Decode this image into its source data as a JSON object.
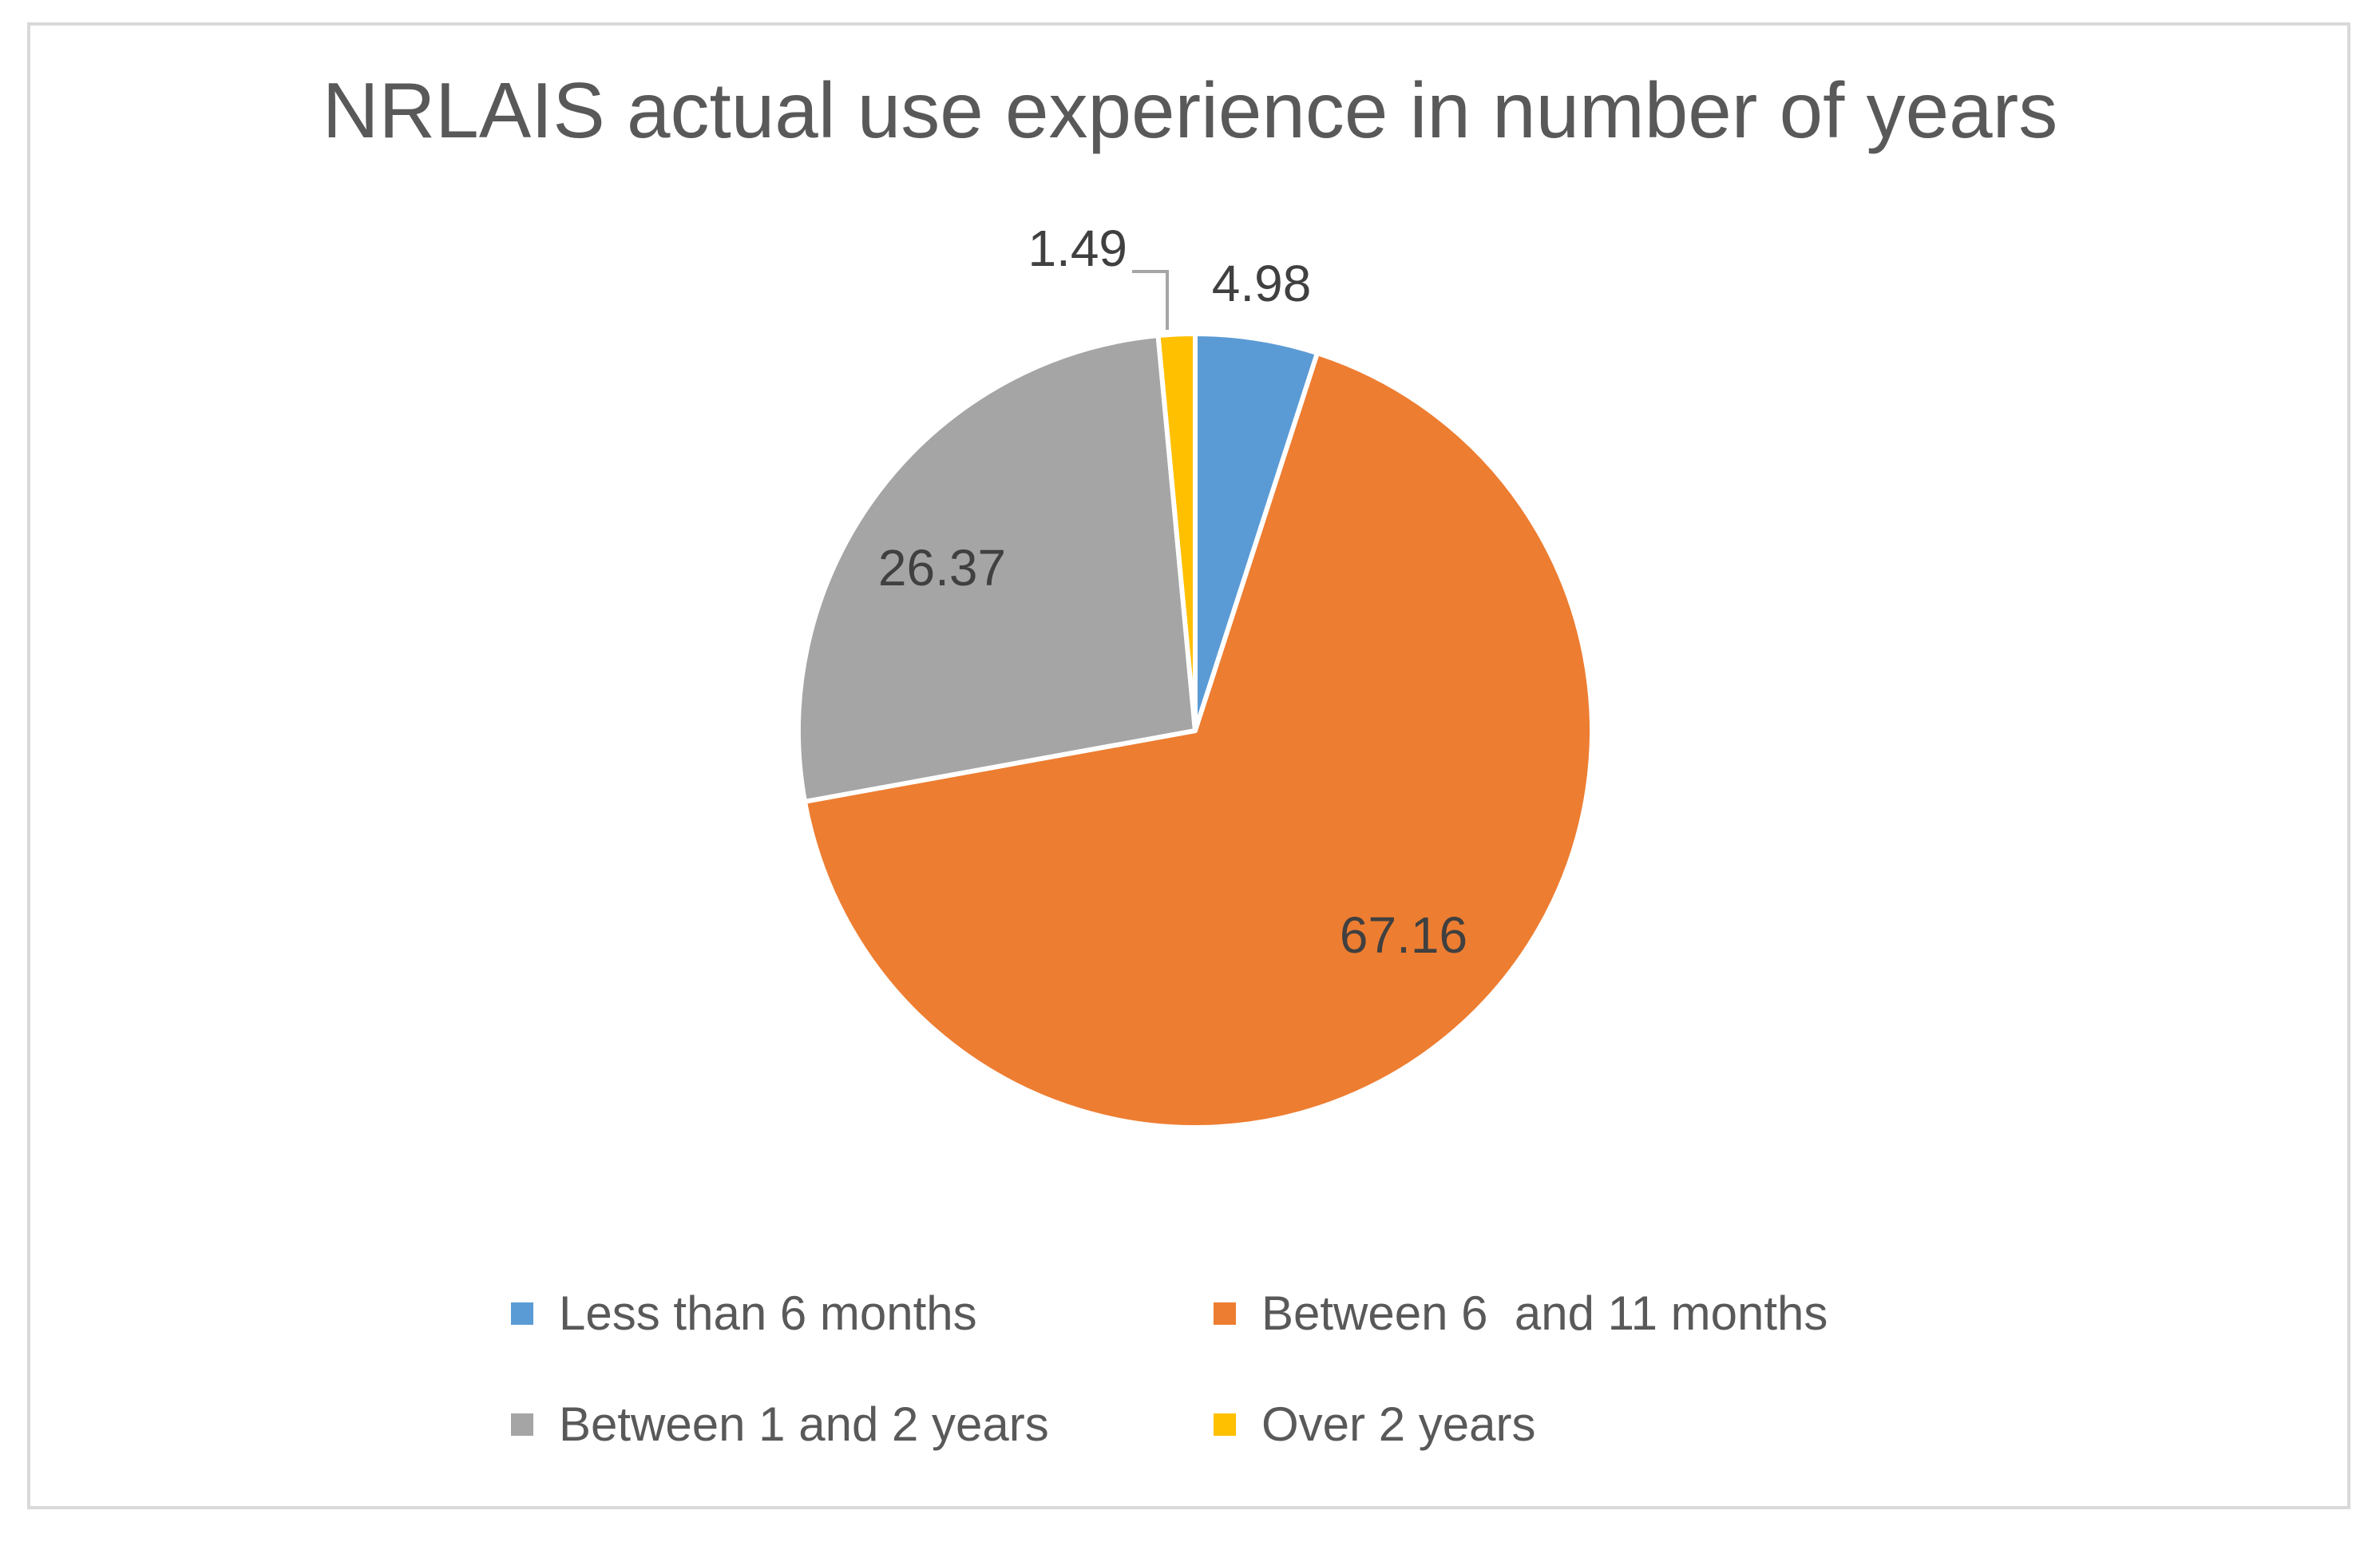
{
  "chart_data": {
    "type": "pie",
    "title": "NRLAIS actual use experience in number of years",
    "categories": [
      "Less than 6 months",
      "Between 6  and 11 months",
      "Between 1 and 2 years",
      "Over 2 years"
    ],
    "values": [
      4.98,
      67.16,
      26.37,
      1.49
    ],
    "labels": [
      "4.98",
      "67.16",
      "26.37",
      "1.49"
    ],
    "colors": [
      "#5b9bd5",
      "#ed7d31",
      "#a5a5a5",
      "#ffc000"
    ],
    "start_angle_deg": 0,
    "direction": "clockwise",
    "legend_position": "bottom"
  }
}
